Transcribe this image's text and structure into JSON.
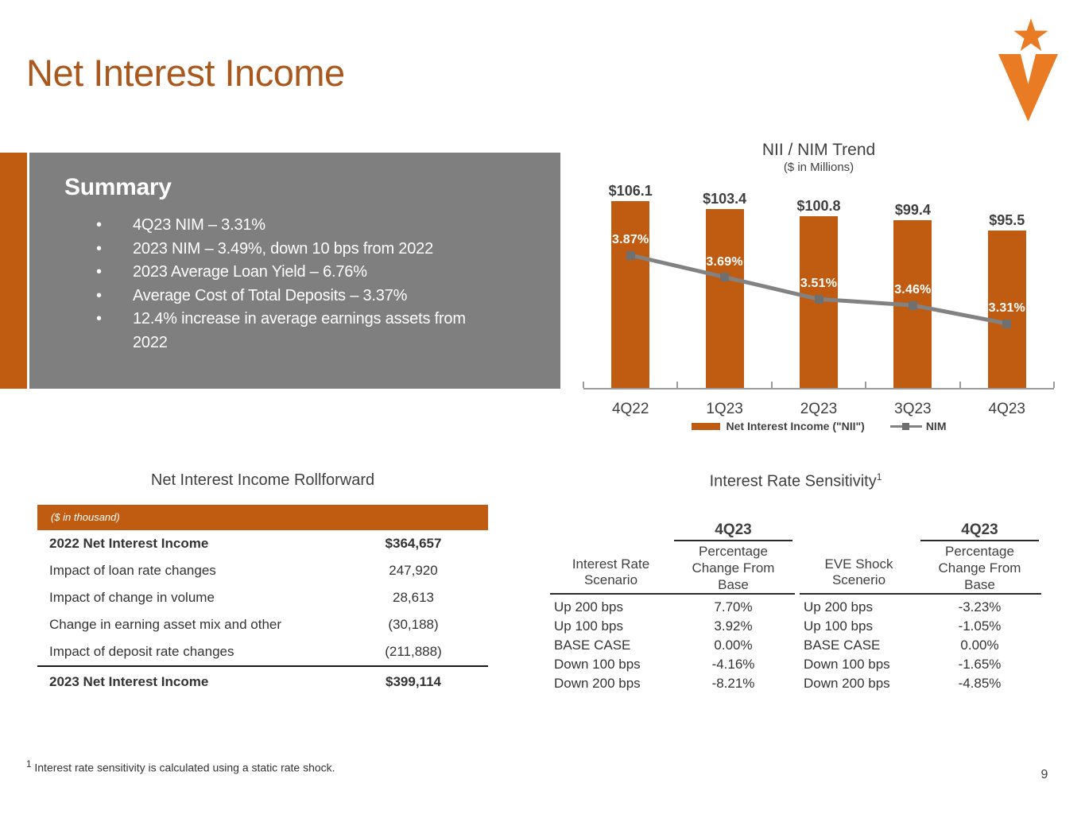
{
  "slide": {
    "title": "Net Interest Income",
    "page_number": "9",
    "footnote_marker": "1",
    "footnote": "Interest rate sensitivity is calculated using a static rate shock."
  },
  "colors": {
    "accent_orange": "#C05C12",
    "logo_orange": "#E87B24",
    "summary_gray": "#7F7F7F",
    "nim_line_gray": "#828282",
    "text_dark": "#3F3F3F"
  },
  "summary": {
    "heading": "Summary",
    "bullets": [
      "4Q23 NIM – 3.31%",
      "2023 NIM – 3.49%, down 10 bps from 2022",
      "2023 Average Loan Yield – 6.76%",
      "Average Cost of Total Deposits – 3.37%",
      "12.4% increase in average earnings assets from 2022"
    ]
  },
  "chart_data": {
    "type": "bar",
    "title": "NII / NIM Trend",
    "subtitle": "($ in Millions)",
    "categories": [
      "4Q22",
      "1Q23",
      "2Q23",
      "3Q23",
      "4Q23"
    ],
    "series": [
      {
        "name": "Net Interest Income (\"NII\")",
        "type": "bar",
        "color": "#C05C12",
        "values": [
          106.1,
          103.4,
          100.8,
          99.4,
          95.5
        ],
        "labels": [
          "$106.1",
          "$103.4",
          "$100.8",
          "$99.4",
          "$95.5"
        ]
      },
      {
        "name": "NIM",
        "type": "line",
        "color": "#828282",
        "values": [
          3.87,
          3.69,
          3.51,
          3.46,
          3.31
        ],
        "labels": [
          "3.87%",
          "3.69%",
          "3.51%",
          "3.46%",
          "3.31%"
        ]
      }
    ],
    "legend_position": "bottom",
    "grid": false
  },
  "rollforward": {
    "title": "Net Interest Income Rollforward",
    "unit_note": "($ in thousand)",
    "rows": [
      {
        "label": "2022 Net Interest Income",
        "value": "$364,657",
        "bold": true,
        "total": false
      },
      {
        "label": "Impact of loan rate changes",
        "value": "247,920",
        "bold": false,
        "total": false
      },
      {
        "label": "Impact of change in volume",
        "value": "28,613",
        "bold": false,
        "total": false
      },
      {
        "label": "Change in earning asset mix and other",
        "value": "(30,188)",
        "bold": false,
        "total": false
      },
      {
        "label": "Impact of deposit rate changes",
        "value": "(211,888)",
        "bold": false,
        "total": false
      },
      {
        "label": "2023 Net Interest Income",
        "value": "$399,114",
        "bold": true,
        "total": true
      }
    ]
  },
  "sensitivity": {
    "title": "Interest Rate Sensitivity",
    "title_superscript": "1",
    "groups": [
      {
        "scenario_header": [
          "Interest Rate",
          "Scenario"
        ],
        "period": "4Q23",
        "value_header": [
          "Percentage",
          "Change From",
          "Base"
        ],
        "rows": [
          {
            "scenario": "Up 200 bps",
            "value": "7.70%"
          },
          {
            "scenario": "Up 100 bps",
            "value": "3.92%"
          },
          {
            "scenario": "BASE CASE",
            "value": "0.00%"
          },
          {
            "scenario": "Down 100 bps",
            "value": "-4.16%"
          },
          {
            "scenario": "Down 200 bps",
            "value": "-8.21%"
          }
        ]
      },
      {
        "scenario_header": [
          "EVE Shock",
          "Scenerio"
        ],
        "period": "4Q23",
        "value_header": [
          "Percentage",
          "Change From",
          "Base"
        ],
        "rows": [
          {
            "scenario": "Up 200 bps",
            "value": "-3.23%"
          },
          {
            "scenario": "Up 100 bps",
            "value": "-1.05%"
          },
          {
            "scenario": "BASE CASE",
            "value": "0.00%"
          },
          {
            "scenario": "Down 100 bps",
            "value": "-1.65%"
          },
          {
            "scenario": "Down 200 bps",
            "value": "-4.85%"
          }
        ]
      }
    ]
  }
}
